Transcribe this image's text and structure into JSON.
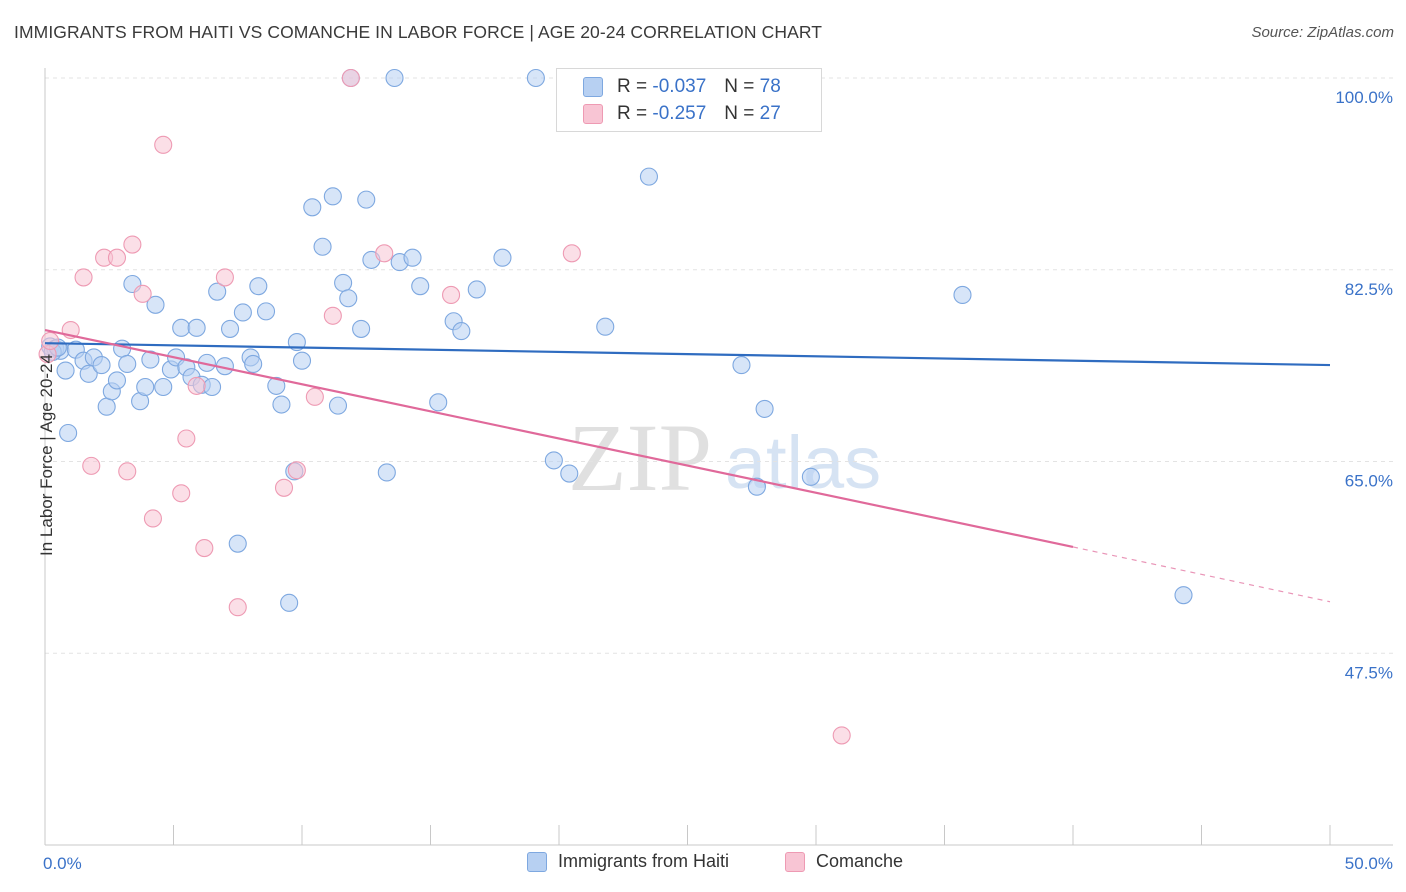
{
  "header": {
    "title": "IMMIGRANTS FROM HAITI VS COMANCHE IN LABOR FORCE | AGE 20-24 CORRELATION CHART",
    "source": "Source: ZipAtlas.com"
  },
  "watermark": {
    "zip": "ZIP",
    "atlas": "atlas"
  },
  "legend_top": [
    {
      "r_label": "R =",
      "r_value": "-0.037",
      "n_label": "N =",
      "n_value": "78"
    },
    {
      "r_label": "R =",
      "r_value": "-0.257",
      "n_label": "N =",
      "n_value": "27"
    }
  ],
  "colors": {
    "blue_fill": "#b7d0f2",
    "blue_stroke": "#7ea8e0",
    "blue_line": "#2f6cc0",
    "pink_fill": "#f8c5d4",
    "pink_stroke": "#ee9ab3",
    "pink_line": "#e0699a",
    "axis_text": "#3a72c8",
    "grid": "#e3e3e3"
  },
  "chart_data": {
    "type": "scatter",
    "title": "IMMIGRANTS FROM HAITI VS COMANCHE IN LABOR FORCE | AGE 20-24 CORRELATION CHART",
    "xlabel": "",
    "ylabel": "In Labor Force | Age 20-24",
    "xlim": [
      0,
      50
    ],
    "ylim": [
      30,
      100
    ],
    "x_tick_labels": [
      "0.0%",
      "50.0%"
    ],
    "y_ticks": [
      47.5,
      65.0,
      82.5,
      100.0
    ],
    "y_tick_labels": [
      "47.5%",
      "65.0%",
      "82.5%",
      "100.0%"
    ],
    "grid": true,
    "series": [
      {
        "name": "Immigrants from Haiti",
        "color": "#b7d0f2",
        "r": -0.037,
        "n": 78,
        "trend": {
          "x": [
            0,
            50
          ],
          "y": [
            75.8,
            73.8
          ]
        },
        "points": [
          [
            0.2,
            75.5
          ],
          [
            0.4,
            75.3
          ],
          [
            0.6,
            75.1
          ],
          [
            0.8,
            73.3
          ],
          [
            0.9,
            67.6
          ],
          [
            1.2,
            75.2
          ],
          [
            1.5,
            74.2
          ],
          [
            1.7,
            73.0
          ],
          [
            1.9,
            74.5
          ],
          [
            2.2,
            73.8
          ],
          [
            2.4,
            70.0
          ],
          [
            2.6,
            71.4
          ],
          [
            2.8,
            72.4
          ],
          [
            3.0,
            75.3
          ],
          [
            3.2,
            73.9
          ],
          [
            3.4,
            81.2
          ],
          [
            3.7,
            70.5
          ],
          [
            3.9,
            71.8
          ],
          [
            4.1,
            74.3
          ],
          [
            4.3,
            79.3
          ],
          [
            4.6,
            71.8
          ],
          [
            4.9,
            73.4
          ],
          [
            5.1,
            74.5
          ],
          [
            5.3,
            77.2
          ],
          [
            5.5,
            73.6
          ],
          [
            5.7,
            72.7
          ],
          [
            5.9,
            77.2
          ],
          [
            6.1,
            72.0
          ],
          [
            6.3,
            74.0
          ],
          [
            6.5,
            71.8
          ],
          [
            6.7,
            80.5
          ],
          [
            7.0,
            73.7
          ],
          [
            7.2,
            77.1
          ],
          [
            7.5,
            57.5
          ],
          [
            7.7,
            78.6
          ],
          [
            8.0,
            74.5
          ],
          [
            8.1,
            73.9
          ],
          [
            8.3,
            81.0
          ],
          [
            8.6,
            78.7
          ],
          [
            9.0,
            71.9
          ],
          [
            9.2,
            70.2
          ],
          [
            9.5,
            52.1
          ],
          [
            9.7,
            64.1
          ],
          [
            9.8,
            75.9
          ],
          [
            10.0,
            74.2
          ],
          [
            10.4,
            88.2
          ],
          [
            10.8,
            84.6
          ],
          [
            11.2,
            89.2
          ],
          [
            11.4,
            70.1
          ],
          [
            11.6,
            81.3
          ],
          [
            11.8,
            79.9
          ],
          [
            11.9,
            100.0
          ],
          [
            12.3,
            77.1
          ],
          [
            12.5,
            88.9
          ],
          [
            12.7,
            83.4
          ],
          [
            13.3,
            64.0
          ],
          [
            13.6,
            100.0
          ],
          [
            13.8,
            83.2
          ],
          [
            14.3,
            83.6
          ],
          [
            14.6,
            81.0
          ],
          [
            15.3,
            70.4
          ],
          [
            15.9,
            77.8
          ],
          [
            16.2,
            76.9
          ],
          [
            16.8,
            80.7
          ],
          [
            17.8,
            83.6
          ],
          [
            19.1,
            100.0
          ],
          [
            19.8,
            65.1
          ],
          [
            20.4,
            63.9
          ],
          [
            21.8,
            77.3
          ],
          [
            23.5,
            91.0
          ],
          [
            27.1,
            73.8
          ],
          [
            27.7,
            62.7
          ],
          [
            28.0,
            69.8
          ],
          [
            29.8,
            63.6
          ],
          [
            35.7,
            80.2
          ],
          [
            44.3,
            52.8
          ],
          [
            0.3,
            75.0
          ],
          [
            0.5,
            75.4
          ]
        ]
      },
      {
        "name": "Comanche",
        "color": "#f8c5d4",
        "r": -0.257,
        "n": 27,
        "trend": {
          "x": [
            0,
            40
          ],
          "y": [
            77.0,
            57.2
          ]
        },
        "trend_dashed": {
          "x": [
            40,
            50
          ],
          "y": [
            57.2,
            52.2
          ]
        },
        "points": [
          [
            0.1,
            74.8
          ],
          [
            0.2,
            76.0
          ],
          [
            1.0,
            77.0
          ],
          [
            1.5,
            81.8
          ],
          [
            1.8,
            64.6
          ],
          [
            2.3,
            83.6
          ],
          [
            2.8,
            83.6
          ],
          [
            3.2,
            64.1
          ],
          [
            3.4,
            84.8
          ],
          [
            3.8,
            80.3
          ],
          [
            4.2,
            59.8
          ],
          [
            4.6,
            93.9
          ],
          [
            5.3,
            62.1
          ],
          [
            5.5,
            67.1
          ],
          [
            5.9,
            71.9
          ],
          [
            6.2,
            57.1
          ],
          [
            7.0,
            81.8
          ],
          [
            7.5,
            51.7
          ],
          [
            9.3,
            62.6
          ],
          [
            9.8,
            64.2
          ],
          [
            10.5,
            70.9
          ],
          [
            11.2,
            78.3
          ],
          [
            11.9,
            100.0
          ],
          [
            13.2,
            84.0
          ],
          [
            15.8,
            80.2
          ],
          [
            20.5,
            84.0
          ],
          [
            31.0,
            40.0
          ]
        ]
      }
    ]
  },
  "legend_bottom": [
    {
      "label": "Immigrants from Haiti"
    },
    {
      "label": "Comanche"
    }
  ]
}
